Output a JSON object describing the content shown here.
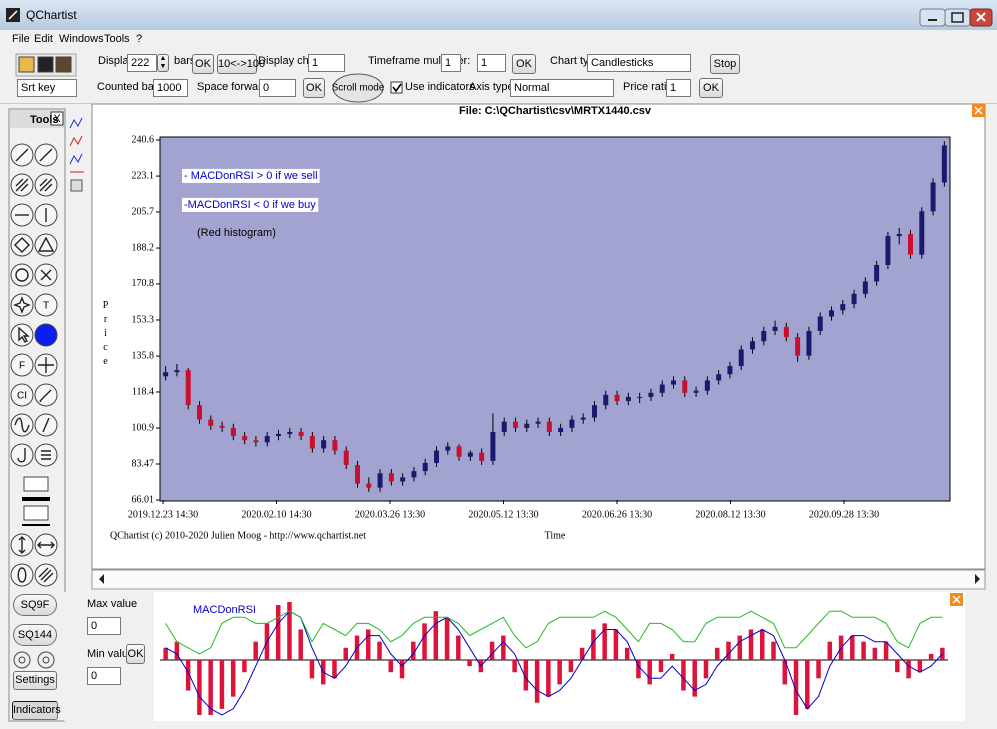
{
  "window": {
    "title": "QChartist"
  },
  "menu": [
    "File",
    "Edit",
    "Windows",
    "Tools",
    "?"
  ],
  "toolbar": {
    "display_label": "Display",
    "display_value": "222",
    "bars_label": "bars",
    "ok1": "OK",
    "toggle": "10<->100",
    "display_chart_label": "Display chart:",
    "display_chart_value": "1",
    "timeframe_label": "Timeframe multiplier:",
    "timeframe_value1": "1",
    "timeframe_value2": "1",
    "ok2": "OK",
    "chart_type_label": "Chart type:",
    "chart_type_value": "Candlesticks",
    "stop": "Stop",
    "srt_key": "Srt key",
    "counted_bars_label": "Counted bars:",
    "counted_bars_value": "1000",
    "space_forwards_label": "Space forwards:",
    "space_forwards_value": "0",
    "ok3": "OK",
    "scroll_mode": "Scroll mode",
    "use_indicators": "Use indicators",
    "axis_type_label": "Axis type:",
    "axis_type_value": "Normal",
    "price_ratio_label": "Price ratio:",
    "price_ratio_value": "1",
    "ok4": "OK"
  },
  "tools": {
    "title": "Tools",
    "close": "X",
    "text_buttons": [
      "T",
      "F",
      "CI"
    ],
    "sq9f": "SQ9F",
    "sq144": "SQ144",
    "settings": "Settings",
    "indicators": "Indicators"
  },
  "indicator_panel": {
    "max_label": "Max value",
    "max_value": "0",
    "min_label": "Min value",
    "min_value": "0",
    "ok": "OK"
  },
  "chart_data": [
    {
      "type": "candlestick",
      "title": "File: C:\\QChartist\\csv\\MRTX1440.csv",
      "x_label": "Time",
      "y_label": "Price",
      "footer": "QChartist (c) 2010-2020 Julien Moog - http://www.qchartist.net",
      "annotations": [
        "- MACDonRSI > 0 if we sell",
        "-MACDonRSI < 0 if we buy",
        "(Red histogram)"
      ],
      "xticks": [
        "2019.12.23 14:30",
        "2020.02.10 14:30",
        "2020.03.26 13:30",
        "2020.05.12 13:30",
        "2020.06.26 13:30",
        "2020.08.12 13:30",
        "2020.09.28 13:30"
      ],
      "ylim": [
        66.01,
        240.6
      ],
      "yticks": [
        66.01,
        83.47,
        100.9,
        118.4,
        135.8,
        153.3,
        170.8,
        188.2,
        205.7,
        223.1,
        240.6
      ],
      "background": "#a3a3d1",
      "up_color": "#191970",
      "down_color": "#c8102e",
      "open": [
        126,
        128,
        129,
        112,
        105,
        102,
        101,
        97,
        95,
        94,
        97,
        98,
        99,
        97,
        91,
        95,
        90,
        83,
        74,
        72,
        79,
        75,
        77,
        80,
        84,
        90,
        92,
        87,
        89,
        85,
        99,
        104,
        101,
        103,
        104,
        99,
        101,
        105,
        106,
        112,
        117,
        114,
        116,
        116,
        118,
        122,
        124,
        118,
        119,
        124,
        127,
        131,
        139,
        143,
        148,
        150,
        145,
        136,
        148,
        155,
        158,
        161,
        166,
        172,
        180,
        194,
        195,
        185,
        206,
        220
      ],
      "high": [
        131,
        132,
        130,
        114,
        107,
        104,
        103,
        99,
        97,
        99,
        100,
        101,
        101,
        99,
        97,
        97,
        92,
        85,
        77,
        81,
        81,
        79,
        82,
        86,
        92,
        94,
        93,
        90,
        91,
        108,
        106,
        106,
        105,
        106,
        106,
        103,
        107,
        108,
        114,
        119,
        119,
        118,
        118,
        120,
        124,
        126,
        126,
        121,
        126,
        129,
        133,
        141,
        145,
        150,
        153,
        152,
        147,
        150,
        157,
        160,
        163,
        168,
        174,
        182,
        196,
        198,
        197,
        208,
        222,
        240
      ],
      "low": [
        124,
        126,
        110,
        103,
        100,
        99,
        95,
        93,
        92,
        92,
        95,
        96,
        95,
        89,
        89,
        88,
        81,
        72,
        70,
        70,
        73,
        73,
        75,
        78,
        82,
        88,
        85,
        85,
        83,
        83,
        97,
        99,
        99,
        101,
        97,
        97,
        99,
        103,
        104,
        110,
        112,
        112,
        113,
        114,
        116,
        120,
        116,
        116,
        117,
        122,
        125,
        129,
        137,
        141,
        146,
        143,
        133,
        134,
        146,
        153,
        156,
        159,
        164,
        170,
        178,
        190,
        183,
        183,
        204,
        218
      ],
      "close": [
        128,
        129,
        112,
        105,
        102,
        101,
        97,
        95,
        94,
        97,
        98,
        99,
        97,
        91,
        95,
        90,
        83,
        74,
        72,
        79,
        75,
        77,
        80,
        84,
        90,
        92,
        87,
        89,
        85,
        99,
        104,
        101,
        103,
        104,
        99,
        101,
        105,
        106,
        112,
        117,
        114,
        116,
        116,
        118,
        122,
        124,
        118,
        119,
        124,
        127,
        131,
        139,
        143,
        148,
        150,
        145,
        136,
        148,
        155,
        158,
        161,
        166,
        172,
        180,
        194,
        195,
        185,
        206,
        220,
        238
      ]
    },
    {
      "type": "bar",
      "title": "MACDonRSI",
      "color": "#dc143c",
      "values": [
        0.2,
        0.3,
        -0.5,
        -0.9,
        -0.9,
        -0.8,
        -0.6,
        -0.2,
        0.3,
        0.6,
        0.9,
        0.95,
        0.5,
        -0.3,
        -0.4,
        -0.3,
        0.2,
        0.4,
        0.5,
        0.3,
        -0.2,
        -0.3,
        0.3,
        0.6,
        0.8,
        0.7,
        0.4,
        -0.1,
        -0.2,
        0.3,
        0.4,
        -0.2,
        -0.5,
        -0.7,
        -0.6,
        -0.4,
        -0.2,
        0.2,
        0.5,
        0.6,
        0.5,
        0.2,
        -0.3,
        -0.4,
        -0.2,
        0.1,
        -0.5,
        -0.6,
        -0.3,
        0.2,
        0.3,
        0.4,
        0.5,
        0.5,
        0.3,
        -0.4,
        -0.9,
        -0.8,
        -0.3,
        0.3,
        0.4,
        0.4,
        0.3,
        0.2,
        0.3,
        -0.2,
        -0.3,
        -0.2,
        0.1,
        0.2
      ],
      "lines": [
        {
          "color": "#0000cc",
          "values": [
            0.2,
            0.1,
            -0.2,
            -0.6,
            -0.8,
            -0.9,
            -0.8,
            -0.5,
            -0.1,
            0.3,
            0.6,
            0.8,
            0.7,
            0.2,
            -0.2,
            -0.3,
            -0.1,
            0.2,
            0.4,
            0.4,
            0.1,
            -0.1,
            0.1,
            0.4,
            0.6,
            0.7,
            0.5,
            0.2,
            -0.1,
            0.1,
            0.3,
            0.1,
            -0.3,
            -0.5,
            -0.6,
            -0.5,
            -0.3,
            0,
            0.3,
            0.5,
            0.5,
            0.3,
            -0.1,
            -0.3,
            -0.3,
            -0.1,
            -0.3,
            -0.5,
            -0.4,
            -0.1,
            0.1,
            0.3,
            0.4,
            0.5,
            0.4,
            0,
            -0.5,
            -0.8,
            -0.6,
            -0.1,
            0.2,
            0.4,
            0.4,
            0.3,
            0.3,
            0.1,
            -0.1,
            -0.2,
            -0.1,
            0.1
          ]
        },
        {
          "color": "#22bb22",
          "values": [
            0.6,
            0.3,
            0.2,
            0.1,
            0.2,
            0.6,
            0.7,
            0.7,
            0.6,
            0.6,
            0.7,
            0.8,
            0.7,
            0.3,
            0.6,
            0.5,
            0.4,
            0.6,
            0.6,
            0.5,
            0.3,
            0.4,
            0.6,
            0.7,
            0.7,
            0.7,
            0.6,
            0.4,
            0.5,
            0.6,
            0.7,
            0.4,
            0.2,
            0.3,
            0.6,
            0.7,
            0.7,
            0.7,
            0.7,
            0.8,
            0.7,
            0.5,
            0.3,
            0.6,
            0.6,
            0.5,
            0.3,
            0.3,
            0.6,
            0.7,
            0.7,
            0.7,
            0.8,
            0.7,
            0.6,
            0.2,
            0.2,
            0.4,
            0.6,
            0.8,
            0.8,
            0.7,
            0.7,
            0.7,
            0.6,
            0.3,
            0.2,
            0.6,
            0.7,
            0.7
          ]
        }
      ]
    }
  ]
}
